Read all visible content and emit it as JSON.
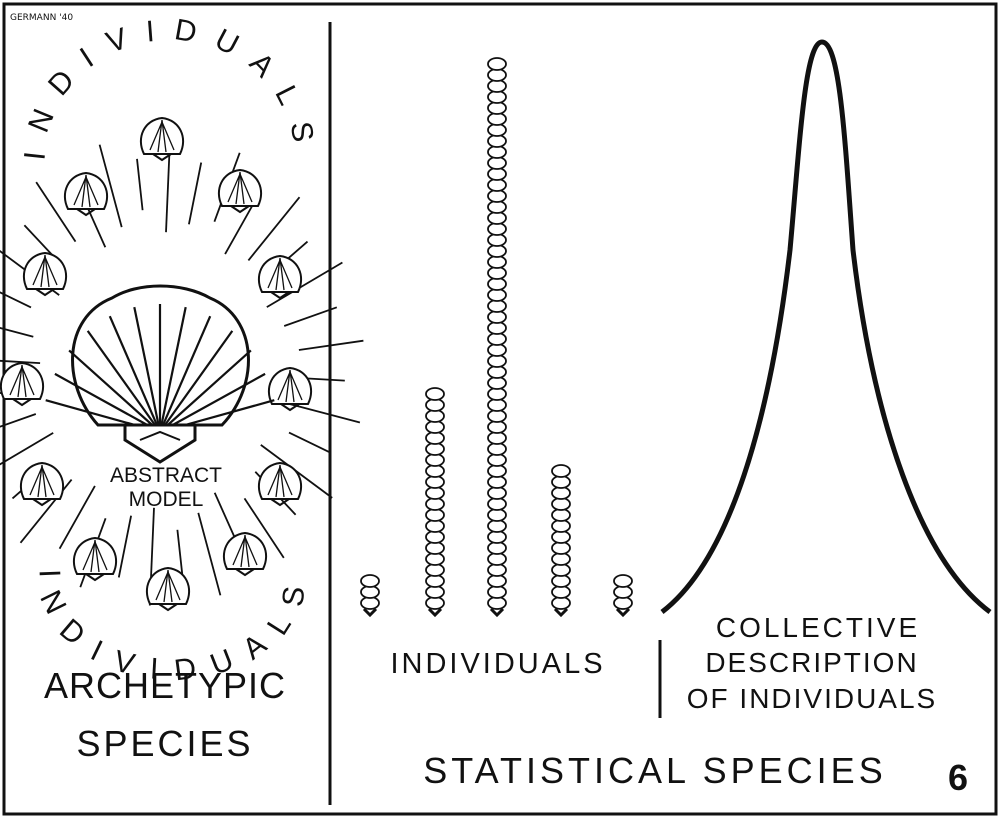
{
  "signature": "GERMANN '40",
  "figure_number": "6",
  "left_panel": {
    "arc_top": "INDIVIDUALS",
    "arc_bottom": "INDIVIDUALS",
    "center_label_line1": "ABSTRACT",
    "center_label_line2": "MODEL",
    "title_line1": "ARCHETYPIC",
    "title_line2": "SPECIES"
  },
  "right_panel": {
    "individuals_label": "INDIVIDUALS",
    "collective_line1": "COLLECTIVE",
    "collective_line2": "DESCRIPTION",
    "collective_line3": "OF INDIVIDUALS",
    "title": "STATISTICAL SPECIES",
    "stack_counts": [
      3,
      20,
      50,
      13,
      3
    ]
  },
  "colors": {
    "ink": "#111111",
    "paper": "#ffffff"
  }
}
